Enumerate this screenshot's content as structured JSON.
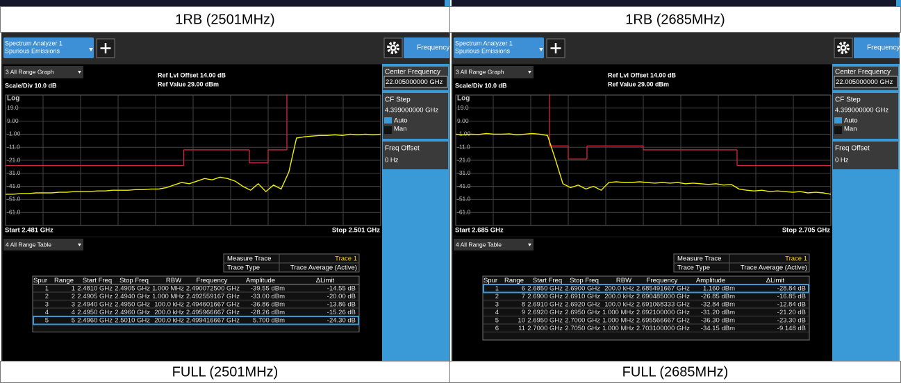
{
  "captions_top": [
    "1RB (2501MHz)",
    "1RB (2685MHz)"
  ],
  "captions_bottom": [
    "FULL (2501MHz)",
    "FULL (2685MHz)"
  ],
  "panels": [
    {
      "tab": [
        "Spectrum Analyzer 1",
        "Spurious Emissions"
      ],
      "freq_tab": "Frequency",
      "graph_menu": "3 All Range Graph",
      "scale": "Scale/Div 10.0 dB",
      "ref_offset": "Ref Lvl Offset 14.00 dB",
      "ref_value": "Ref Value 29.00 dBm",
      "log": "Log",
      "start": "Start 2.481 GHz",
      "stop": "Stop 2.501 GHz",
      "ylim": [
        -71,
        29
      ],
      "yticks": [
        {
          "value": 19,
          "label": "19.0"
        },
        {
          "value": 9,
          "label": "9.00"
        },
        {
          "value": -1,
          "label": "-1.00"
        },
        {
          "value": -11,
          "label": "-11.0"
        },
        {
          "value": -21,
          "label": "-21.0"
        },
        {
          "value": -31,
          "label": "-31.0"
        },
        {
          "value": -41,
          "label": "-41.0"
        },
        {
          "value": -51,
          "label": "-51.0"
        },
        {
          "value": -61,
          "label": "-61.0"
        }
      ],
      "xlim": [
        2.481,
        2.501
      ],
      "trace": [
        -47,
        -47,
        -46.5,
        -46.5,
        -46,
        -46,
        -46,
        -45.5,
        -45.5,
        -45,
        -45,
        -45,
        -44.5,
        -44.5,
        -44,
        -44,
        -44,
        -43.5,
        -43.5,
        -43,
        -43,
        -42,
        -40,
        -38,
        -39,
        -37,
        -35,
        -36,
        -34,
        -35,
        -37,
        -41,
        -44,
        -39,
        -45,
        -40,
        -43,
        -30,
        -4,
        -3,
        -2.5,
        -2,
        -2,
        -1.5,
        -2,
        -1,
        -1.5,
        -1,
        -1.5,
        -1
      ],
      "limit_line": [
        {
          "x": [
            2.481,
            2.4905
          ],
          "y": -25
        },
        {
          "x": [
            2.4905,
            2.494
          ],
          "y": -13
        },
        {
          "x": [
            2.494,
            2.495
          ],
          "y": -23
        },
        {
          "x": [
            2.495,
            2.496
          ],
          "y": -13
        },
        {
          "x": [
            2.496,
            2.501
          ],
          "y": 30
        }
      ],
      "sidebar": {
        "center_label": "Center Frequency",
        "center_value": "22.005000000 GHz",
        "step_label": "CF Step",
        "step_value": "4.399000000 GHz",
        "auto": "Auto",
        "man": "Man",
        "offset_label": "Freq Offset",
        "offset_value": "0 Hz"
      },
      "table_menu": "4 All Range Table",
      "measure_trace_label": "Measure Trace",
      "measure_trace": "Trace 1",
      "trace_type_label": "Trace Type",
      "trace_type": "Trace Average (Active)",
      "table": {
        "columns": [
          "Spur",
          "Range",
          "Start Freq",
          "Stop Freq",
          "RBW",
          "Frequency",
          "Amplitude",
          "ΔLimit"
        ],
        "rows": [
          [
            "1",
            "1",
            "2.4810 GHz",
            "2.4905 GHz",
            "1.000 MHz",
            "2.490072500 GHz",
            "-39.55 dBm",
            "-14.55 dB"
          ],
          [
            "2",
            "2",
            "2.4905 GHz",
            "2.4940 GHz",
            "1.000 MHz",
            "2.492559167 GHz",
            "-33.00 dBm",
            "-20.00 dB"
          ],
          [
            "3",
            "3",
            "2.4940 GHz",
            "2.4950 GHz",
            "100.0 kHz",
            "2.494601667 GHz",
            "-36.86 dBm",
            "-13.86 dB"
          ],
          [
            "4",
            "4",
            "2.4950 GHz",
            "2.4960 GHz",
            "200.0 kHz",
            "2.495966667 GHz",
            "-28.26 dBm",
            "-15.26 dB"
          ],
          [
            "5",
            "5",
            "2.4960 GHz",
            "2.5010 GHz",
            "200.0 kHz",
            "2.499416667 GHz",
            "5.700 dBm",
            "-24.30 dB"
          ]
        ],
        "selected": 4
      }
    },
    {
      "tab": [
        "Spectrum Analyzer 1",
        "Spurious Emissions"
      ],
      "freq_tab": "Frequency",
      "graph_menu": "3 All Range Graph",
      "scale": "Scale/Div 10.0 dB",
      "ref_offset": "Ref Lvl Offset 14.00 dB",
      "ref_value": "Ref Value 29.00 dBm",
      "log": "Log",
      "start": "Start 2.685 GHz",
      "stop": "Stop 2.705 GHz",
      "ylim": [
        -71,
        29
      ],
      "yticks": [
        {
          "value": 19,
          "label": "19.0"
        },
        {
          "value": 9,
          "label": "9.00"
        },
        {
          "value": -1,
          "label": "-1.00"
        },
        {
          "value": -11,
          "label": "-11.0"
        },
        {
          "value": -21,
          "label": "-21.0"
        },
        {
          "value": -31,
          "label": "-31.0"
        },
        {
          "value": -41,
          "label": "-41.0"
        },
        {
          "value": -51,
          "label": "-51.0"
        },
        {
          "value": -61,
          "label": "-61.0"
        }
      ],
      "xlim": [
        2.685,
        2.705
      ],
      "trace": [
        -1,
        -1.5,
        -1,
        -1.2,
        -0.5,
        -1,
        -1,
        -0.8,
        -1.5,
        -1,
        -0.5,
        -1,
        -2,
        -20,
        -39,
        -42,
        -40,
        -43,
        -41,
        -44,
        -38,
        -37.5,
        -38,
        -38,
        -37.5,
        -38,
        -38.5,
        -38,
        -38.5,
        -38,
        -39,
        -38.5,
        -39,
        -39.5,
        -39,
        -40,
        -39.5,
        -43,
        -44,
        -44.5,
        -44,
        -45,
        -44.5,
        -45,
        -45.5,
        -45,
        -46,
        -45.5,
        -46,
        -47
      ],
      "limit_line": [
        {
          "x": [
            2.685,
            2.69
          ],
          "y": 30
        },
        {
          "x": [
            2.69,
            2.691
          ],
          "y": -10
        },
        {
          "x": [
            2.691,
            2.692
          ],
          "y": -20
        },
        {
          "x": [
            2.692,
            2.695
          ],
          "y": -10
        },
        {
          "x": [
            2.695,
            2.7
          ],
          "y": -13
        },
        {
          "x": [
            2.7,
            2.705
          ],
          "y": -25
        }
      ],
      "sidebar": {
        "center_label": "Center Frequency",
        "center_value": "22.005000000 GHz",
        "step_label": "CF Step",
        "step_value": "4.399000000 GHz",
        "auto": "Auto",
        "man": "Man",
        "offset_label": "Freq Offset",
        "offset_value": "0 Hz"
      },
      "table_menu": "4 All Range Table",
      "measure_trace_label": "Measure Trace",
      "measure_trace": "Trace 1",
      "trace_type_label": "Trace Type",
      "trace_type": "Trace Average (Active)",
      "table": {
        "columns": [
          "Spur",
          "Range",
          "Start Freq",
          "Stop Freq",
          "RBW",
          "Frequency",
          "Amplitude",
          "ΔLimit"
        ],
        "rows": [
          [
            "1",
            "6",
            "2.6850 GHz",
            "2.6900 GHz",
            "200.0 kHz",
            "2.685491667 GHz",
            "1.160 dBm",
            "-28.84 dB"
          ],
          [
            "2",
            "7",
            "2.6900 GHz",
            "2.6910 GHz",
            "200.0 kHz",
            "2.690485000 GHz",
            "-26.85 dBm",
            "-16.85 dB"
          ],
          [
            "3",
            "8",
            "2.6910 GHz",
            "2.6920 GHz",
            "100.0 kHz",
            "2.691068333 GHz",
            "-32.84 dBm",
            "-12.84 dB"
          ],
          [
            "4",
            "9",
            "2.6920 GHz",
            "2.6950 GHz",
            "1.000 MHz",
            "2.692100000 GHz",
            "-31.20 dBm",
            "-21.20 dB"
          ],
          [
            "5",
            "10",
            "2.6950 GHz",
            "2.7000 GHz",
            "1.000 MHz",
            "2.695566667 GHz",
            "-36.30 dBm",
            "-23.30 dB"
          ],
          [
            "6",
            "11",
            "2.7000 GHz",
            "2.7050 GHz",
            "1.000 MHz",
            "2.703100000 GHz",
            "-34.15 dBm",
            "-9.148 dB"
          ]
        ],
        "selected": 0
      }
    }
  ]
}
